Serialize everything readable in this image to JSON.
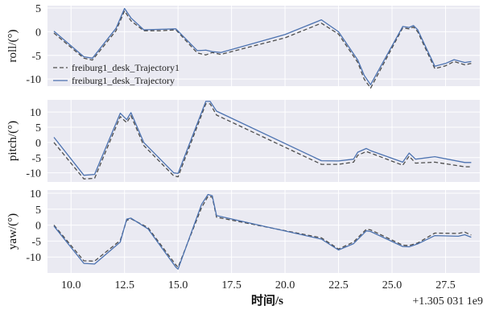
{
  "chart_data": {
    "type": "line",
    "xlabel": "时间/s",
    "x_offset_label": "+1.305 031 1e9",
    "xlim": [
      8.9,
      29.1
    ],
    "xticks": [
      10.0,
      12.5,
      15.0,
      17.5,
      20.0,
      22.5,
      25.0,
      27.5
    ],
    "xtick_labels": [
      "10.0",
      "12.5",
      "15.0",
      "17.5",
      "20.0",
      "22.5",
      "25.0",
      "27.5"
    ],
    "legend_position": "lower-left of top panel",
    "colors": {
      "plot_bg": "#eaeaf2",
      "grid": "#ffffff",
      "dashed": "#4d4d4d",
      "solid": "#4c72b0"
    },
    "panels": [
      {
        "ylabel": "roll/(°)",
        "ylim": [
          -11.5,
          5.5
        ],
        "yticks": [
          5,
          0,
          -5,
          -10
        ],
        "ytick_labels": [
          "5",
          "0",
          "-5",
          "-10"
        ],
        "show_legend": true,
        "series": [
          {
            "name": "freiburg1_desk_Trajectory1",
            "style": "dashed",
            "x": [
              9.2,
              10.6,
              11.0,
              12.1,
              12.5,
              12.8,
              13.4,
              14.2,
              14.9,
              15.9,
              16.3,
              16.6,
              17.0,
              20.0,
              21.7,
              22.5,
              23.4,
              23.7,
              24.0,
              25.5,
              25.8,
              26.0,
              26.2,
              27.0,
              27.5,
              27.9,
              28.4,
              28.7
            ],
            "y": [
              -0.3,
              -5.6,
              -6.0,
              0.2,
              4.4,
              2.3,
              0.2,
              0.2,
              0.4,
              -4.5,
              -4.9,
              -4.4,
              -4.8,
              -1.3,
              1.8,
              -0.5,
              -6.5,
              -10.0,
              -11.9,
              0.8,
              0.6,
              1.0,
              0.0,
              -7.8,
              -7.2,
              -6.3,
              -7.0,
              -6.7
            ]
          },
          {
            "name": "freiburg1_desk_Trajectory",
            "style": "solid",
            "x": [
              9.2,
              10.6,
              11.0,
              12.1,
              12.5,
              12.8,
              13.4,
              14.2,
              14.9,
              15.9,
              16.3,
              16.6,
              17.0,
              20.0,
              21.7,
              22.5,
              23.4,
              23.7,
              24.0,
              25.5,
              25.8,
              26.0,
              26.2,
              27.0,
              27.5,
              27.9,
              28.4,
              28.7
            ],
            "y": [
              0.1,
              -5.3,
              -5.6,
              0.7,
              4.9,
              2.9,
              0.4,
              0.5,
              0.6,
              -4.0,
              -3.9,
              -4.2,
              -4.4,
              -0.6,
              2.5,
              0.0,
              -6.0,
              -9.2,
              -11.2,
              1.1,
              0.9,
              1.3,
              0.4,
              -7.3,
              -6.7,
              -5.9,
              -6.5,
              -6.3
            ]
          }
        ]
      },
      {
        "ylabel": "pitch/(°)",
        "ylim": [
          -13,
          14
        ],
        "yticks": [
          10,
          5,
          0,
          -5,
          -10
        ],
        "ytick_labels": [
          "10",
          "5",
          "0",
          "-5",
          "-10"
        ],
        "show_legend": false,
        "series": [
          {
            "name": "freiburg1_desk_Trajectory1",
            "style": "dashed",
            "x": [
              9.2,
              10.6,
              11.1,
              12.3,
              12.6,
              12.8,
              13.4,
              14.8,
              15.0,
              16.3,
              16.5,
              16.8,
              21.7,
              22.5,
              23.2,
              23.4,
              23.8,
              24.0,
              25.5,
              25.8,
              26.1,
              27.0,
              28.4,
              28.7
            ],
            "y": [
              0.0,
              -12.0,
              -11.8,
              8.5,
              6.5,
              8.8,
              -1.0,
              -11.0,
              -11.3,
              12.7,
              12.7,
              9.0,
              -7.2,
              -7.2,
              -6.5,
              -4.2,
              -3.0,
              -3.5,
              -7.5,
              -4.5,
              -6.8,
              -6.5,
              -8.0,
              -8.0
            ]
          },
          {
            "name": "freiburg1_desk_Trajectory",
            "style": "solid",
            "x": [
              9.2,
              10.6,
              11.1,
              12.3,
              12.6,
              12.8,
              13.4,
              14.8,
              15.0,
              16.3,
              16.5,
              16.8,
              21.7,
              22.5,
              23.2,
              23.4,
              23.8,
              24.0,
              25.5,
              25.8,
              26.1,
              27.0,
              28.4,
              28.7
            ],
            "y": [
              1.7,
              -10.8,
              -10.5,
              9.6,
              7.5,
              9.8,
              0.0,
              -10.0,
              -10.2,
              13.5,
              13.5,
              10.3,
              -6.0,
              -6.1,
              -5.5,
              -3.2,
              -2.0,
              -2.7,
              -6.5,
              -3.5,
              -5.5,
              -4.7,
              -6.6,
              -6.6
            ]
          }
        ]
      },
      {
        "ylabel": "yaw/(°)",
        "ylim": [
          -15,
          11
        ],
        "yticks": [
          10,
          5,
          0,
          -5,
          -10
        ],
        "ytick_labels": [
          "10",
          "5",
          "0",
          "-5",
          "-10"
        ],
        "show_legend": false,
        "series": [
          {
            "name": "freiburg1_desk_Trajectory1",
            "style": "dashed",
            "x": [
              9.2,
              10.6,
              11.1,
              12.3,
              12.6,
              12.8,
              13.6,
              14.9,
              15.0,
              16.1,
              16.4,
              16.6,
              16.8,
              21.7,
              22.5,
              23.2,
              23.8,
              24.0,
              25.5,
              25.8,
              26.2,
              27.0,
              28.1,
              28.4,
              28.7
            ],
            "y": [
              0.0,
              -11.2,
              -11.3,
              -4.8,
              1.5,
              2.0,
              -0.8,
              -12.5,
              -13.2,
              5.5,
              9.0,
              8.8,
              2.5,
              -4.0,
              -7.5,
              -5.3,
              -1.3,
              -1.5,
              -6.3,
              -6.4,
              -5.6,
              -2.5,
              -2.6,
              -2.2,
              -3.1
            ]
          },
          {
            "name": "freiburg1_desk_Trajectory",
            "style": "solid",
            "x": [
              9.2,
              10.6,
              11.1,
              12.3,
              12.6,
              12.8,
              13.6,
              14.9,
              15.0,
              16.1,
              16.4,
              16.6,
              16.8,
              21.7,
              22.5,
              23.2,
              23.8,
              24.0,
              25.5,
              25.8,
              26.2,
              27.0,
              28.1,
              28.4,
              28.7
            ],
            "y": [
              -0.3,
              -12.0,
              -12.2,
              -5.3,
              1.9,
              2.2,
              -1.2,
              -13.2,
              -13.8,
              6.5,
              9.6,
              9.2,
              3.0,
              -4.4,
              -7.8,
              -5.8,
              -1.8,
              -2.0,
              -6.7,
              -6.8,
              -5.9,
              -3.3,
              -3.5,
              -3.0,
              -3.8
            ]
          }
        ]
      }
    ]
  }
}
